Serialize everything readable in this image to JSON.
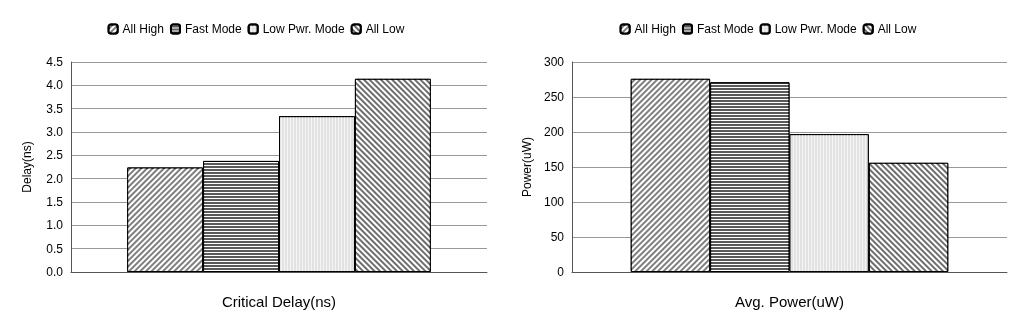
{
  "chart_data": [
    {
      "type": "bar",
      "xlabel": "Critical Delay(ns)",
      "ylabel": "Delay(ns)",
      "categories": [
        null
      ],
      "series": [
        {
          "name": "All High",
          "color": "#7f7f7f",
          "values": [
            2.24
          ]
        },
        {
          "name": "Fast Mode",
          "color": "#5a5a5a",
          "values": [
            2.38
          ]
        },
        {
          "name": "Low Pwr. Mode",
          "color": "#e2e2e2",
          "values": [
            3.34
          ]
        },
        {
          "name": "All Low",
          "color": "#6e6e6e",
          "values": [
            4.14
          ]
        }
      ],
      "ylim": [
        0,
        4.5
      ],
      "yticks": [
        {
          "value": 0,
          "label": "0.0"
        },
        0.5,
        {
          "value": 1,
          "label": "1.0"
        },
        1.5,
        {
          "value": 2,
          "label": "2.0"
        },
        2.5,
        {
          "value": 3,
          "label": "3.0"
        },
        3.5,
        {
          "value": 4,
          "label": "4.0"
        },
        4.5
      ],
      "grid": "y",
      "legend": "top"
    },
    {
      "type": "bar",
      "xlabel": "Avg. Power(uW)",
      "ylabel": "Power(uW)",
      "categories": [
        null
      ],
      "series": [
        {
          "name": "All High",
          "color": "#7f7f7f",
          "values": [
            276
          ]
        },
        {
          "name": "Fast Mode",
          "color": "#5a5a5a",
          "values": [
            271
          ]
        },
        {
          "name": "Low Pwr. Mode",
          "color": "#e2e2e2",
          "values": [
            197
          ]
        },
        {
          "name": "All Low",
          "color": "#6e6e6e",
          "values": [
            156
          ]
        }
      ],
      "ylim": [
        0,
        300
      ],
      "yticks": [
        0,
        50,
        100,
        150,
        200,
        250,
        300
      ],
      "grid": "y",
      "legend": "top"
    }
  ]
}
